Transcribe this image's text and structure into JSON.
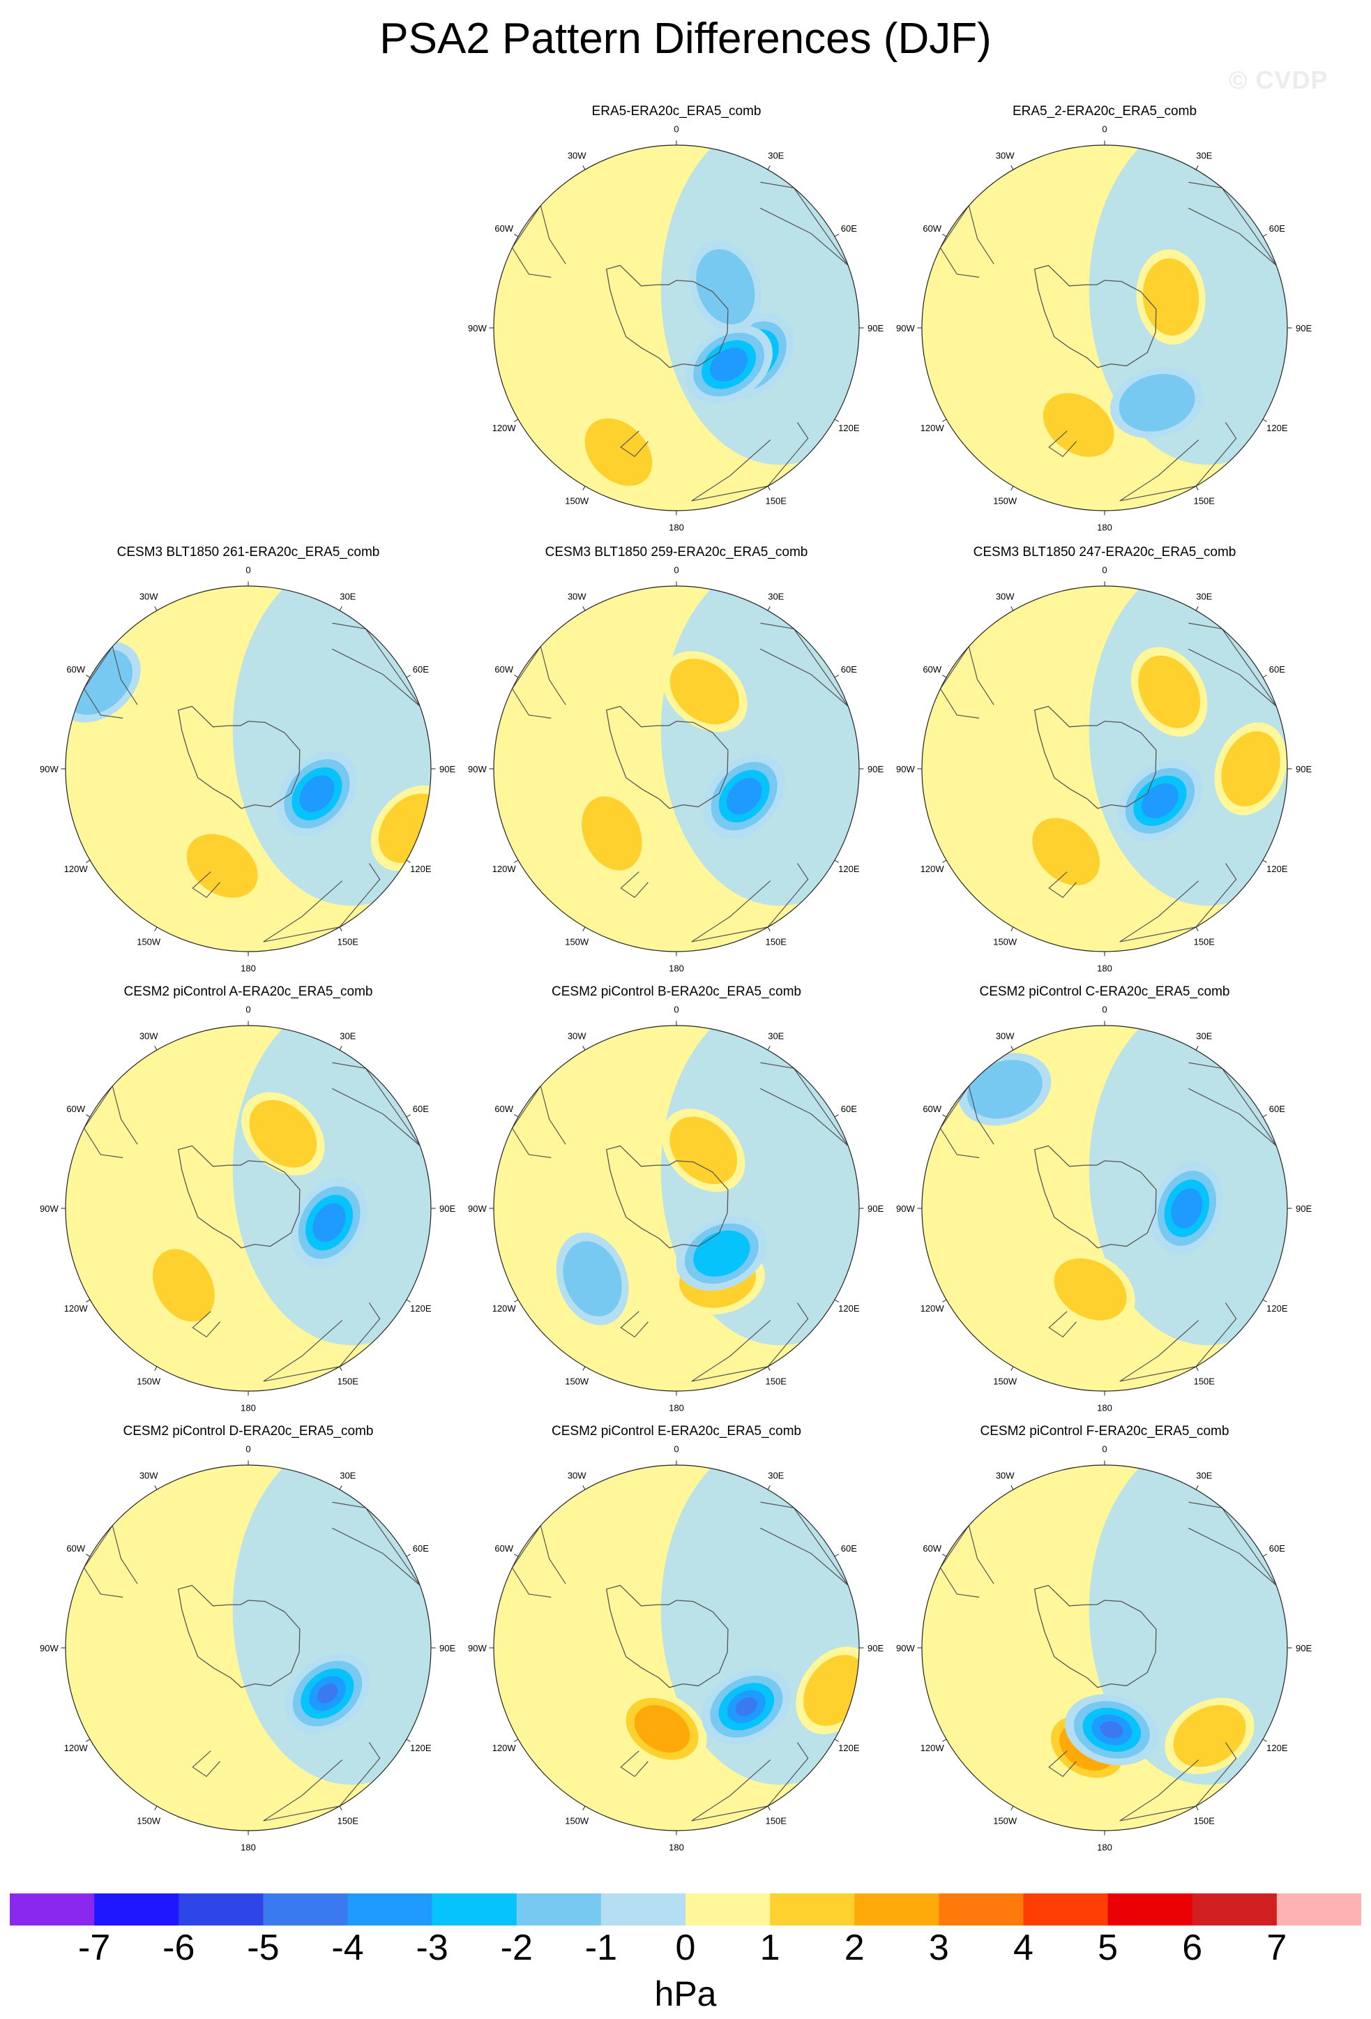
{
  "title": "PSA2 Pattern Differences (DJF)",
  "watermark": "© CVDP",
  "longitude_labels": [
    "0",
    "30E",
    "60E",
    "90E",
    "120E",
    "150E",
    "180",
    "150W",
    "120W",
    "90W",
    "60W",
    "30W"
  ],
  "panels": [
    {
      "title": "ERA5-ERA20c_ERA5_comb",
      "row": 0,
      "col": 1,
      "anomalies": [
        {
          "lon": 205,
          "r": 0.75,
          "value": 2
        },
        {
          "lon": 110,
          "r": 0.45,
          "value": -3
        },
        {
          "lon": 50,
          "r": 0.35,
          "value": -2
        },
        {
          "lon": 125,
          "r": 0.35,
          "value": -4
        }
      ]
    },
    {
      "title": "ERA5_2-ERA20c_ERA5_comb",
      "row": 0,
      "col": 2,
      "anomalies": [
        {
          "lon": 195,
          "r": 0.55,
          "value": 2
        },
        {
          "lon": 145,
          "r": 0.5,
          "value": -2
        },
        {
          "lon": 65,
          "r": 0.4,
          "value": 2
        }
      ]
    },
    {
      "title": "CESM3 BLT1850 261-ERA20c_ERA5_comb",
      "row": 1,
      "col": 0,
      "anomalies": [
        {
          "lon": 195,
          "r": 0.55,
          "value": 2
        },
        {
          "lon": 110,
          "r": 0.4,
          "value": -4
        },
        {
          "lon": 110,
          "r": 0.95,
          "value": 2
        },
        {
          "lon": 300,
          "r": 0.95,
          "value": -2
        }
      ]
    },
    {
      "title": "CESM3 BLT1850 259-ERA20c_ERA5_comb",
      "row": 1,
      "col": 1,
      "anomalies": [
        {
          "lon": 225,
          "r": 0.5,
          "value": 2
        },
        {
          "lon": 112,
          "r": 0.4,
          "value": -4
        },
        {
          "lon": 20,
          "r": 0.45,
          "value": 2
        }
      ]
    },
    {
      "title": "CESM3 BLT1850 247-ERA20c_ERA5_comb",
      "row": 1,
      "col": 2,
      "anomalies": [
        {
          "lon": 205,
          "r": 0.5,
          "value": 2
        },
        {
          "lon": 90,
          "r": 0.8,
          "value": 2
        },
        {
          "lon": 120,
          "r": 0.35,
          "value": -4
        },
        {
          "lon": 40,
          "r": 0.55,
          "value": 2
        }
      ]
    },
    {
      "title": "CESM2 piControl A-ERA20c_ERA5_comb",
      "row": 2,
      "col": 0,
      "anomalies": [
        {
          "lon": 220,
          "r": 0.55,
          "value": 2
        },
        {
          "lon": 100,
          "r": 0.45,
          "value": -4
        },
        {
          "lon": 25,
          "r": 0.45,
          "value": 2
        }
      ]
    },
    {
      "title": "CESM2 piControl B-ERA20c_ERA5_comb",
      "row": 2,
      "col": 1,
      "anomalies": [
        {
          "lon": 230,
          "r": 0.6,
          "value": -2
        },
        {
          "lon": 150,
          "r": 0.45,
          "value": 2
        },
        {
          "lon": 135,
          "r": 0.35,
          "value": -3
        },
        {
          "lon": 25,
          "r": 0.35,
          "value": 2
        }
      ]
    },
    {
      "title": "CESM2 piControl C-ERA20c_ERA5_comb",
      "row": 2,
      "col": 2,
      "anomalies": [
        {
          "lon": 190,
          "r": 0.45,
          "value": 2
        },
        {
          "lon": 90,
          "r": 0.45,
          "value": -4
        },
        {
          "lon": 320,
          "r": 0.85,
          "value": -2
        }
      ]
    },
    {
      "title": "CESM2 piControl D-ERA20c_ERA5_comb",
      "row": 3,
      "col": 0,
      "anomalies": [
        {
          "lon": 120,
          "r": 0.5,
          "value": -5
        }
      ]
    },
    {
      "title": "CESM2 piControl E-ERA20c_ERA5_comb",
      "row": 3,
      "col": 1,
      "anomalies": [
        {
          "lon": 190,
          "r": 0.45,
          "value": 3
        },
        {
          "lon": 130,
          "r": 0.5,
          "value": -5
        },
        {
          "lon": 105,
          "r": 0.9,
          "value": 2
        }
      ]
    },
    {
      "title": "CESM2 piControl F-ERA20c_ERA5_comb",
      "row": 3,
      "col": 2,
      "anomalies": [
        {
          "lon": 190,
          "r": 0.55,
          "value": 3
        },
        {
          "lon": 175,
          "r": 0.45,
          "value": -5
        },
        {
          "lon": 130,
          "r": 0.75,
          "value": 2
        }
      ]
    }
  ],
  "colorbar": {
    "levels": [
      "-7",
      "-6",
      "-5",
      "-4",
      "-3",
      "-2",
      "-1",
      "0",
      "1",
      "2",
      "3",
      "4",
      "5",
      "6",
      "7"
    ],
    "colors": [
      "#8a28ef",
      "#1f17ff",
      "#2e45e8",
      "#3a79f0",
      "#1f9bff",
      "#06c3fb",
      "#77c9f1",
      "#b4def2",
      "#fff79a",
      "#ffd12e",
      "#ffa90b",
      "#ff7a0a",
      "#ff3e05",
      "#ea0004",
      "#d21f22",
      "#ffb2b2"
    ],
    "units": "hPa"
  }
}
